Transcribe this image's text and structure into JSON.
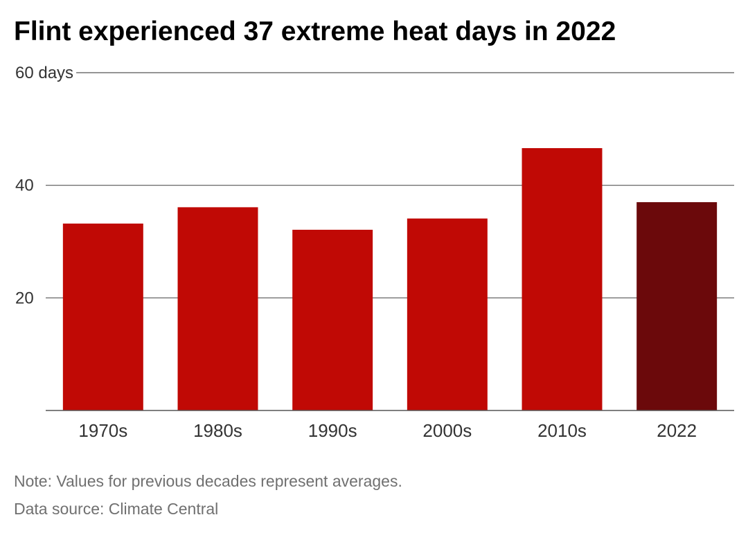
{
  "title": "Flint experienced 37 extreme heat days in 2022",
  "note": "Note: Values for previous decades represent averages.",
  "source": "Data source: Climate Central",
  "colors": {
    "bar": "#c00905",
    "highlight": "#6b090b",
    "grid": "#555555",
    "axis_text": "#333333"
  },
  "chart_data": {
    "type": "bar",
    "title": "Flint experienced 37 extreme heat days in 2022",
    "categories": [
      "1970s",
      "1980s",
      "1990s",
      "2000s",
      "2010s",
      "2022"
    ],
    "values": [
      33.2,
      36.1,
      32.1,
      34.1,
      46.6,
      37
    ],
    "highlight_category": "2022",
    "ylabel": "",
    "xlabel": "",
    "ylim": [
      0,
      60
    ],
    "yticks": [
      {
        "value": 20,
        "label": "20"
      },
      {
        "value": 40,
        "label": "40"
      },
      {
        "value": 60,
        "label": "60 days"
      }
    ],
    "grid": true
  }
}
